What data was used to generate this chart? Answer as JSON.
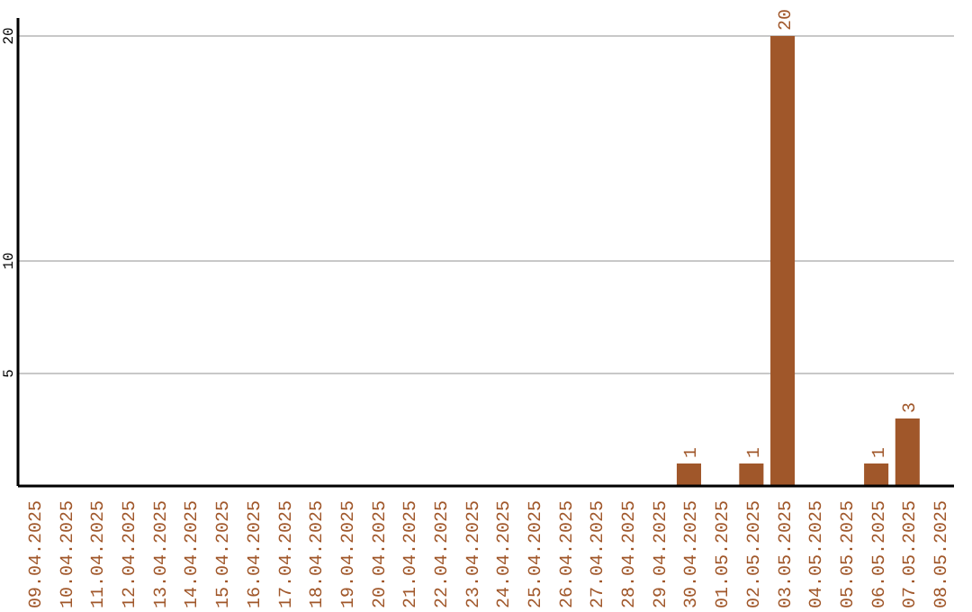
{
  "chart_data": {
    "type": "bar",
    "categories": [
      "09.04.2025",
      "10.04.2025",
      "11.04.2025",
      "12.04.2025",
      "13.04.2025",
      "14.04.2025",
      "15.04.2025",
      "16.04.2025",
      "17.04.2025",
      "18.04.2025",
      "19.04.2025",
      "20.04.2025",
      "21.04.2025",
      "22.04.2025",
      "23.04.2025",
      "24.04.2025",
      "25.04.2025",
      "26.04.2025",
      "27.04.2025",
      "28.04.2025",
      "29.04.2025",
      "30.04.2025",
      "01.05.2025",
      "02.05.2025",
      "03.05.2025",
      "04.05.2025",
      "05.05.2025",
      "06.05.2025",
      "07.05.2025",
      "08.05.2025"
    ],
    "values": [
      0,
      0,
      0,
      0,
      0,
      0,
      0,
      0,
      0,
      0,
      0,
      0,
      0,
      0,
      0,
      0,
      0,
      0,
      0,
      0,
      0,
      1,
      0,
      1,
      20,
      0,
      0,
      1,
      3,
      0
    ],
    "value_labels": [
      null,
      null,
      null,
      null,
      null,
      null,
      null,
      null,
      null,
      null,
      null,
      null,
      null,
      null,
      null,
      null,
      null,
      null,
      null,
      null,
      null,
      "1",
      null,
      "1",
      "20",
      null,
      null,
      "1",
      "3",
      null
    ],
    "color": "#a0572a",
    "ylim": [
      0,
      20.8
    ],
    "yticks": [
      5,
      10,
      20
    ],
    "grid": "y"
  }
}
